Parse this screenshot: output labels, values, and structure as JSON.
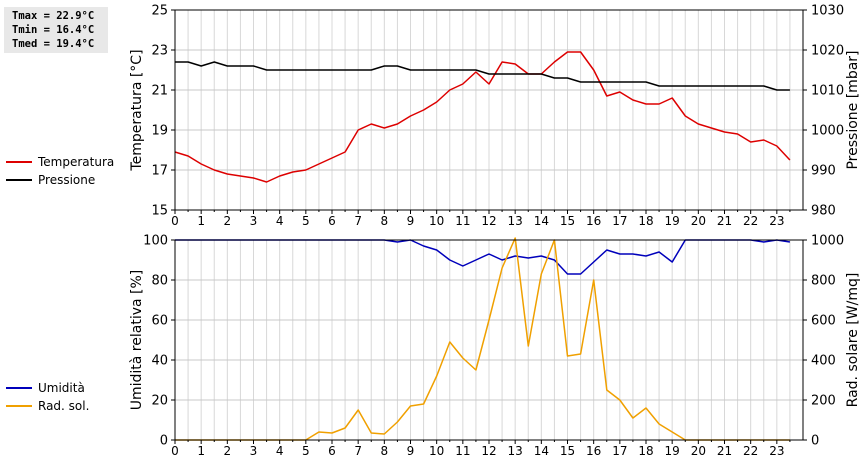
{
  "stats": {
    "tmax": "Tmax = 22.9°C",
    "tmin": "Tmin = 16.4°C",
    "tmed": "Tmed = 19.4°C"
  },
  "chart_data": [
    {
      "type": "line",
      "title": "",
      "xlabel": "",
      "ylabel": "Temperatura [°C]",
      "ylabel_right": "Pressione [mbar]",
      "xlim": [
        0,
        24
      ],
      "x_ticks": [
        "0",
        "1",
        "2",
        "3",
        "4",
        "5",
        "6",
        "7",
        "8",
        "9",
        "10",
        "11",
        "12",
        "13",
        "14",
        "15",
        "16",
        "17",
        "18",
        "19",
        "20",
        "21",
        "22",
        "23"
      ],
      "ylim": [
        15,
        25
      ],
      "y_ticks": [
        "15",
        "17",
        "19",
        "21",
        "23",
        "25"
      ],
      "ylim_right": [
        980,
        1030
      ],
      "y_ticks_right": [
        "980",
        "990",
        "1000",
        "1010",
        "1020",
        "1030"
      ],
      "grid": true,
      "legend": "left",
      "series": [
        {
          "name": "Temperatura",
          "axis": "left",
          "color": "#dd0000",
          "x": [
            0,
            0.5,
            1,
            1.5,
            2,
            2.5,
            3,
            3.5,
            4,
            4.5,
            5,
            5.5,
            6,
            6.5,
            7,
            7.5,
            8,
            8.5,
            9,
            9.5,
            10,
            10.5,
            11,
            11.5,
            12,
            12.5,
            13,
            13.5,
            14,
            14.5,
            15,
            15.5,
            16,
            16.5,
            17,
            17.5,
            18,
            18.5,
            19,
            19.5,
            20,
            20.5,
            21,
            21.5,
            22,
            22.5,
            23,
            23.5
          ],
          "values": [
            17.9,
            17.7,
            17.3,
            17.0,
            16.8,
            16.7,
            16.6,
            16.4,
            16.7,
            16.9,
            17.0,
            17.3,
            17.6,
            17.9,
            19.0,
            19.3,
            19.1,
            19.3,
            19.7,
            20.0,
            20.4,
            21.0,
            21.3,
            21.9,
            21.3,
            22.4,
            22.3,
            21.8,
            21.8,
            22.4,
            22.9,
            22.9,
            22.0,
            20.7,
            20.9,
            20.5,
            20.3,
            20.3,
            20.6,
            19.7,
            19.3,
            19.1,
            18.9,
            18.8,
            18.4,
            18.5,
            18.2,
            17.5
          ]
        },
        {
          "name": "Pressione",
          "axis": "right",
          "color": "#000000",
          "x": [
            0,
            0.5,
            1,
            1.5,
            2,
            2.5,
            3,
            3.5,
            4,
            4.5,
            5,
            5.5,
            6,
            6.5,
            7,
            7.5,
            8,
            8.5,
            9,
            9.5,
            10,
            10.5,
            11,
            11.5,
            12,
            12.5,
            13,
            13.5,
            14,
            14.5,
            15,
            15.5,
            16,
            16.5,
            17,
            17.5,
            18,
            18.5,
            19,
            19.5,
            20,
            20.5,
            21,
            21.5,
            22,
            22.5,
            23,
            23.5
          ],
          "values": [
            1017,
            1017,
            1016,
            1017,
            1016,
            1016,
            1016,
            1015,
            1015,
            1015,
            1015,
            1015,
            1015,
            1015,
            1015,
            1015,
            1016,
            1016,
            1015,
            1015,
            1015,
            1015,
            1015,
            1015,
            1014,
            1014,
            1014,
            1014,
            1014,
            1013,
            1013,
            1012,
            1012,
            1012,
            1012,
            1012,
            1012,
            1011,
            1011,
            1011,
            1011,
            1011,
            1011,
            1011,
            1011,
            1011,
            1010,
            1010
          ]
        }
      ]
    },
    {
      "type": "line",
      "title": "",
      "xlabel": "",
      "ylabel": "Umidità relativa [%]",
      "ylabel_right": "Rad. solare [W/mq]",
      "xlim": [
        0,
        24
      ],
      "x_ticks": [
        "0",
        "1",
        "2",
        "3",
        "4",
        "5",
        "6",
        "7",
        "8",
        "9",
        "10",
        "11",
        "12",
        "13",
        "14",
        "15",
        "16",
        "17",
        "18",
        "19",
        "20",
        "21",
        "22",
        "23"
      ],
      "ylim": [
        0,
        100
      ],
      "y_ticks": [
        "0",
        "20",
        "40",
        "60",
        "80",
        "100"
      ],
      "ylim_right": [
        0,
        1000
      ],
      "y_ticks_right": [
        "0",
        "200",
        "400",
        "600",
        "800",
        "1000"
      ],
      "grid": true,
      "legend": "left",
      "series": [
        {
          "name": "Umidità",
          "axis": "left",
          "color": "#0000bb",
          "x": [
            0,
            0.5,
            1,
            1.5,
            2,
            2.5,
            3,
            3.5,
            4,
            4.5,
            5,
            5.5,
            6,
            6.5,
            7,
            7.5,
            8,
            8.5,
            9,
            9.5,
            10,
            10.5,
            11,
            11.5,
            12,
            12.5,
            13,
            13.5,
            14,
            14.5,
            15,
            15.5,
            16,
            16.5,
            17,
            17.5,
            18,
            18.5,
            19,
            19.5,
            20,
            20.5,
            21,
            21.5,
            22,
            22.5,
            23,
            23.5
          ],
          "values": [
            100,
            100,
            100,
            100,
            100,
            100,
            100,
            100,
            100,
            100,
            100,
            100,
            100,
            100,
            100,
            100,
            100,
            99,
            100,
            97,
            95,
            90,
            87,
            90,
            93,
            90,
            92,
            91,
            92,
            90,
            83,
            83,
            89,
            95,
            93,
            93,
            92,
            94,
            89,
            100,
            100,
            100,
            100,
            100,
            100,
            99,
            100,
            99
          ]
        },
        {
          "name": "Rad. sol.",
          "axis": "right",
          "color": "#f0a000",
          "x": [
            0,
            0.5,
            1,
            1.5,
            2,
            2.5,
            3,
            3.5,
            4,
            4.5,
            5,
            5.5,
            6,
            6.5,
            7,
            7.5,
            8,
            8.5,
            9,
            9.5,
            10,
            10.5,
            11,
            11.5,
            12,
            12.5,
            13,
            13.5,
            14,
            14.5,
            15,
            15.5,
            16,
            16.5,
            17,
            17.5,
            18,
            18.5,
            19,
            19.5,
            20,
            20.5,
            21,
            21.5,
            22,
            22.5,
            23,
            23.5
          ],
          "values": [
            0,
            0,
            0,
            0,
            0,
            0,
            0,
            0,
            0,
            0,
            0,
            40,
            35,
            60,
            150,
            35,
            30,
            90,
            170,
            180,
            320,
            490,
            410,
            350,
            600,
            860,
            1010,
            470,
            830,
            1000,
            420,
            430,
            800,
            250,
            200,
            110,
            160,
            80,
            40,
            0,
            0,
            0,
            0,
            0,
            0,
            0,
            0,
            0
          ]
        }
      ]
    }
  ]
}
